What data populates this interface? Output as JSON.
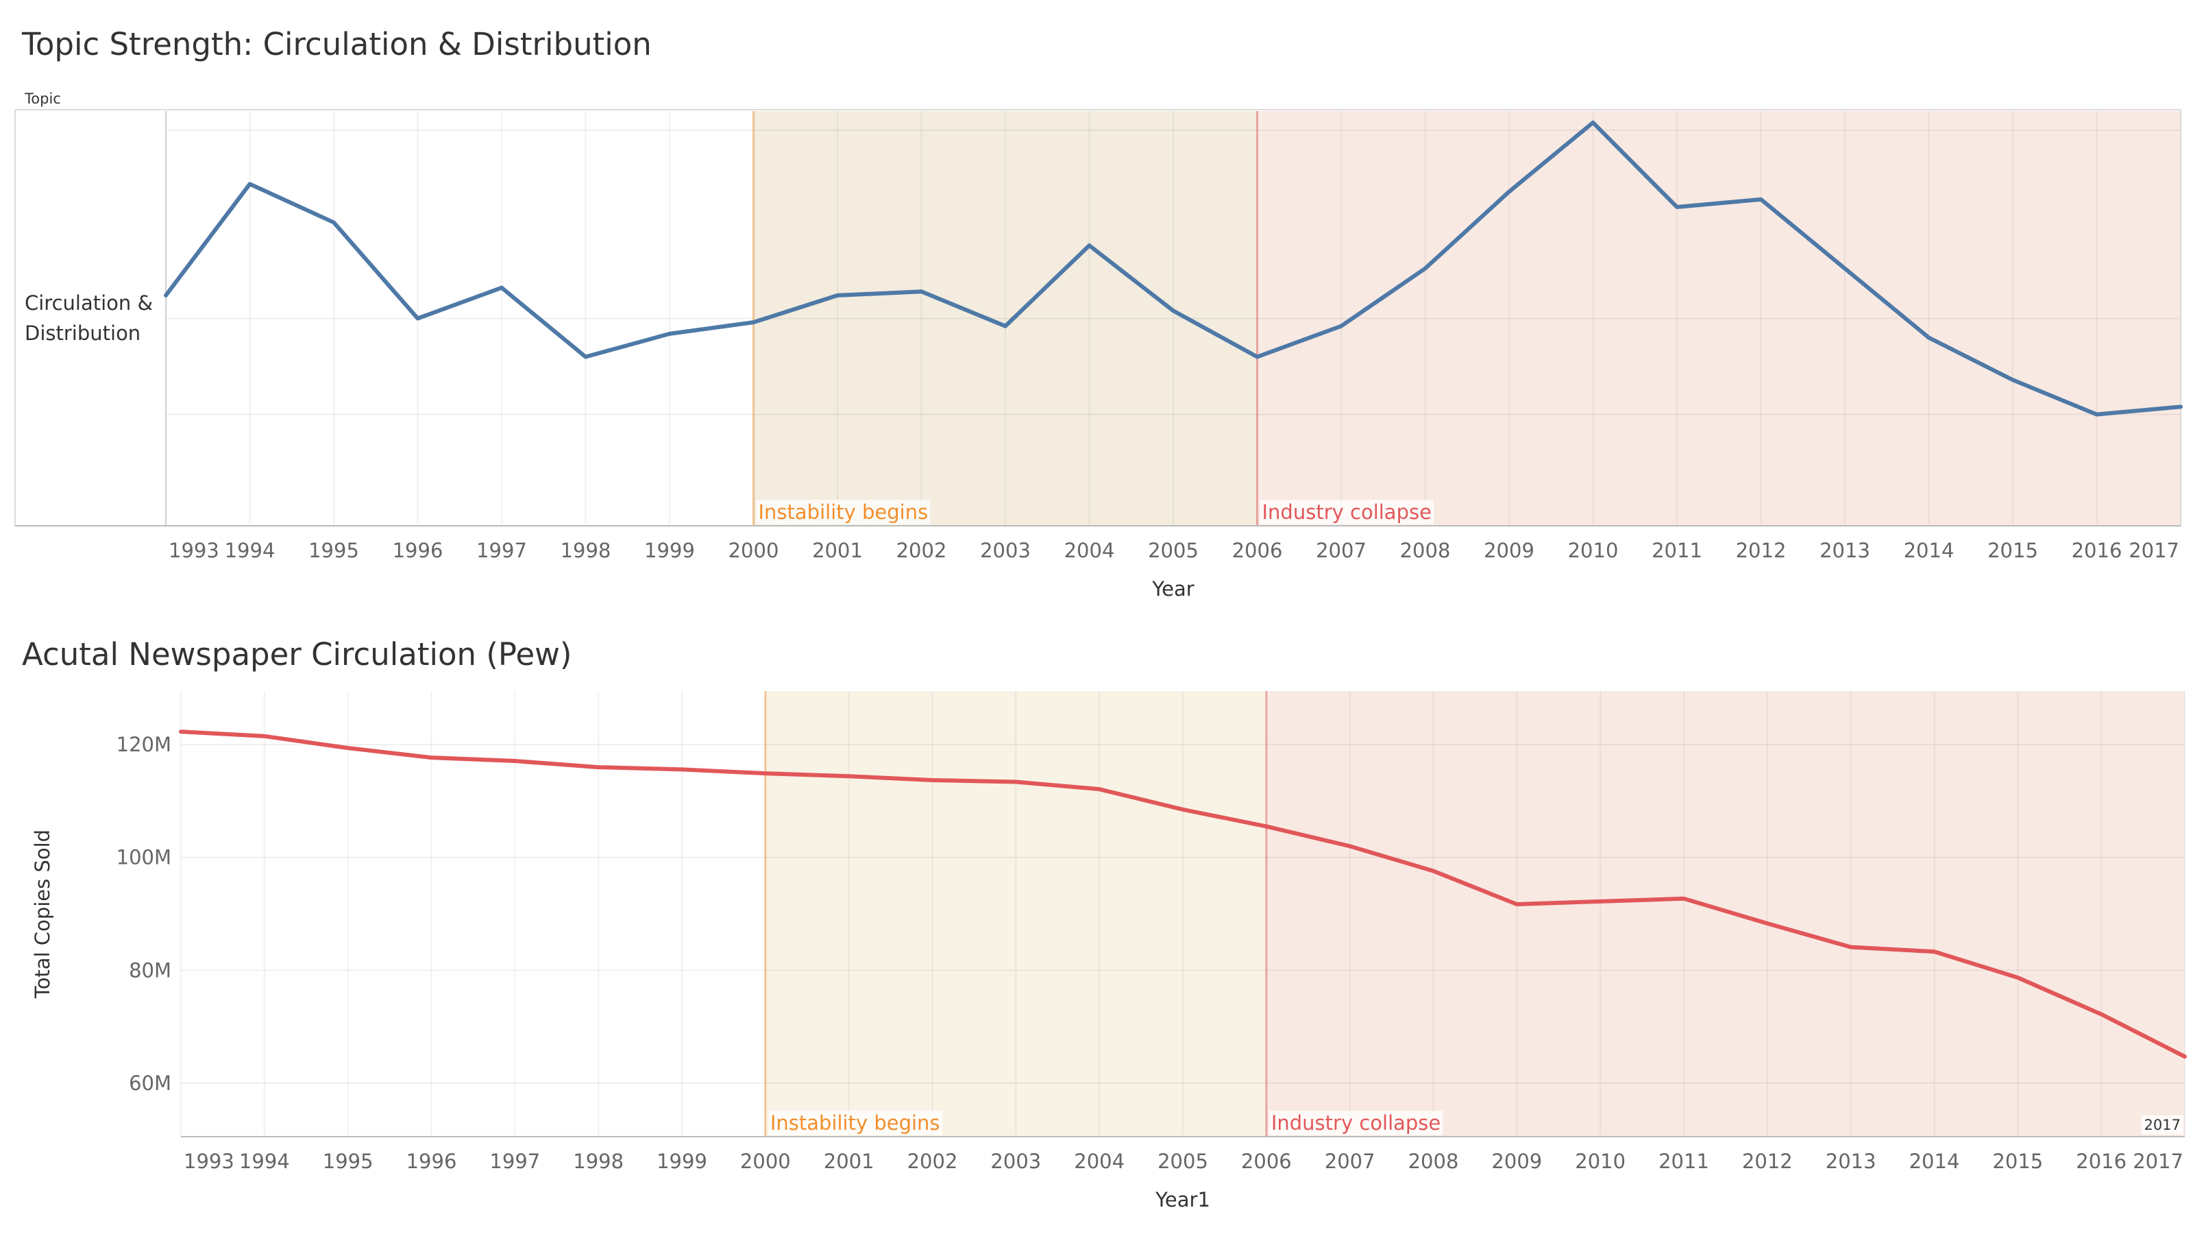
{
  "chart_data": [
    {
      "type": "line",
      "title": "Topic Strength: Circulation & Distribution",
      "column_header": "Topic",
      "row_label": "Circulation & Distribution",
      "xlabel": "Year",
      "ylabel": "",
      "x": [
        1993,
        1994,
        1995,
        1996,
        1997,
        1998,
        1999,
        2000,
        2001,
        2002,
        2003,
        2004,
        2005,
        2006,
        2007,
        2008,
        2009,
        2010,
        2011,
        2012,
        2013,
        2014,
        2015,
        2016,
        2017
      ],
      "series": [
        {
          "name": "",
          "color": "#4e79a7",
          "values": [
            0.56,
            0.85,
            0.75,
            0.5,
            0.58,
            0.4,
            0.46,
            0.49,
            0.56,
            0.57,
            0.48,
            0.69,
            0.52,
            0.4,
            0.48,
            0.63,
            0.83,
            1.01,
            0.79,
            0.81,
            0.63,
            0.45,
            0.34,
            0.25,
            0.27
          ]
        }
      ],
      "ylim": [
        -0.04,
        1.04
      ],
      "grid": true,
      "bands": [
        {
          "label": "Instability begins",
          "start": 2000,
          "end": 2006,
          "color": "#f28e2b",
          "fill": "#f3ecdf"
        },
        {
          "label": "Industry collapse",
          "start": 2006,
          "end": 2017,
          "color": "#e15759",
          "fill": "#f9e9e3"
        }
      ]
    },
    {
      "type": "line",
      "title": "Acutal Newspaper Circulation (Pew)",
      "xlabel": "Year1",
      "ylabel": "Total Copies Sold",
      "x": [
        1993,
        1994,
        1995,
        1996,
        1997,
        1998,
        1999,
        2000,
        2001,
        2002,
        2003,
        2004,
        2005,
        2006,
        2007,
        2008,
        2009,
        2010,
        2011,
        2012,
        2013,
        2014,
        2015,
        2016,
        2017
      ],
      "series": [
        {
          "name": "",
          "color": "#e15759",
          "values": [
            122.3,
            121.5,
            119.4,
            117.7,
            117.1,
            116.0,
            115.6,
            114.9,
            114.4,
            113.7,
            113.4,
            112.1,
            108.5,
            105.5,
            102.0,
            97.6,
            91.7,
            92.2,
            92.7,
            88.3,
            84.1,
            83.3,
            78.7,
            72.2,
            64.7
          ]
        }
      ],
      "y_ticks": [
        60,
        80,
        100,
        120
      ],
      "y_tick_labels": [
        "60M",
        "80M",
        "100M",
        "120M"
      ],
      "ylim": [
        50.5,
        129.5
      ],
      "grid": true,
      "end_label": "2017",
      "bands": [
        {
          "label": "Instability begins",
          "start": 2000,
          "end": 2006,
          "color": "#f28e2b",
          "fill": "#f9f3e6"
        },
        {
          "label": "Industry collapse",
          "start": 2006,
          "end": 2017,
          "color": "#e15759",
          "fill": "#f9e9e3"
        }
      ]
    }
  ]
}
